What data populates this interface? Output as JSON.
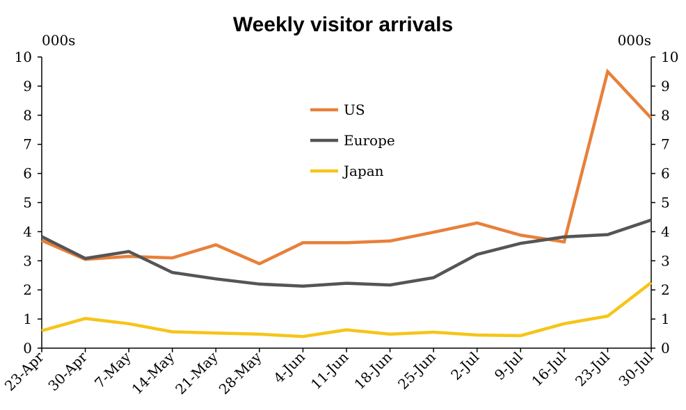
{
  "chart_data": {
    "type": "line",
    "title": "Weekly visitor arrivals",
    "unit_left": "000s",
    "unit_right": "000s",
    "x": [
      "23-Apr",
      "30-Apr",
      "7-May",
      "14-May",
      "21-May",
      "28-May",
      "4-Jun",
      "11-Jun",
      "18-Jun",
      "25-Jun",
      "2-Jul",
      "9-Jul",
      "16-Jul",
      "23-Jul",
      "30-Jul"
    ],
    "ylim": [
      0,
      10
    ],
    "yticks": [
      0,
      1,
      2,
      3,
      4,
      5,
      6,
      7,
      8,
      9,
      10
    ],
    "grid": false,
    "legend_position": "upper-center",
    "series": [
      {
        "name": "US",
        "color": "#E8803A",
        "values": [
          3.7,
          3.05,
          3.15,
          3.1,
          3.55,
          2.9,
          3.62,
          3.62,
          3.68,
          3.98,
          4.3,
          3.88,
          3.65,
          9.5,
          7.9
        ]
      },
      {
        "name": "Europe",
        "color": "#555555",
        "values": [
          3.83,
          3.08,
          3.32,
          2.6,
          2.38,
          2.2,
          2.13,
          2.23,
          2.17,
          2.42,
          3.22,
          3.6,
          3.82,
          3.9,
          4.4
        ]
      },
      {
        "name": "Japan",
        "color": "#F5C518",
        "values": [
          0.6,
          1.02,
          0.84,
          0.56,
          0.52,
          0.48,
          0.4,
          0.63,
          0.48,
          0.55,
          0.45,
          0.43,
          0.84,
          1.1,
          2.25
        ]
      }
    ]
  }
}
